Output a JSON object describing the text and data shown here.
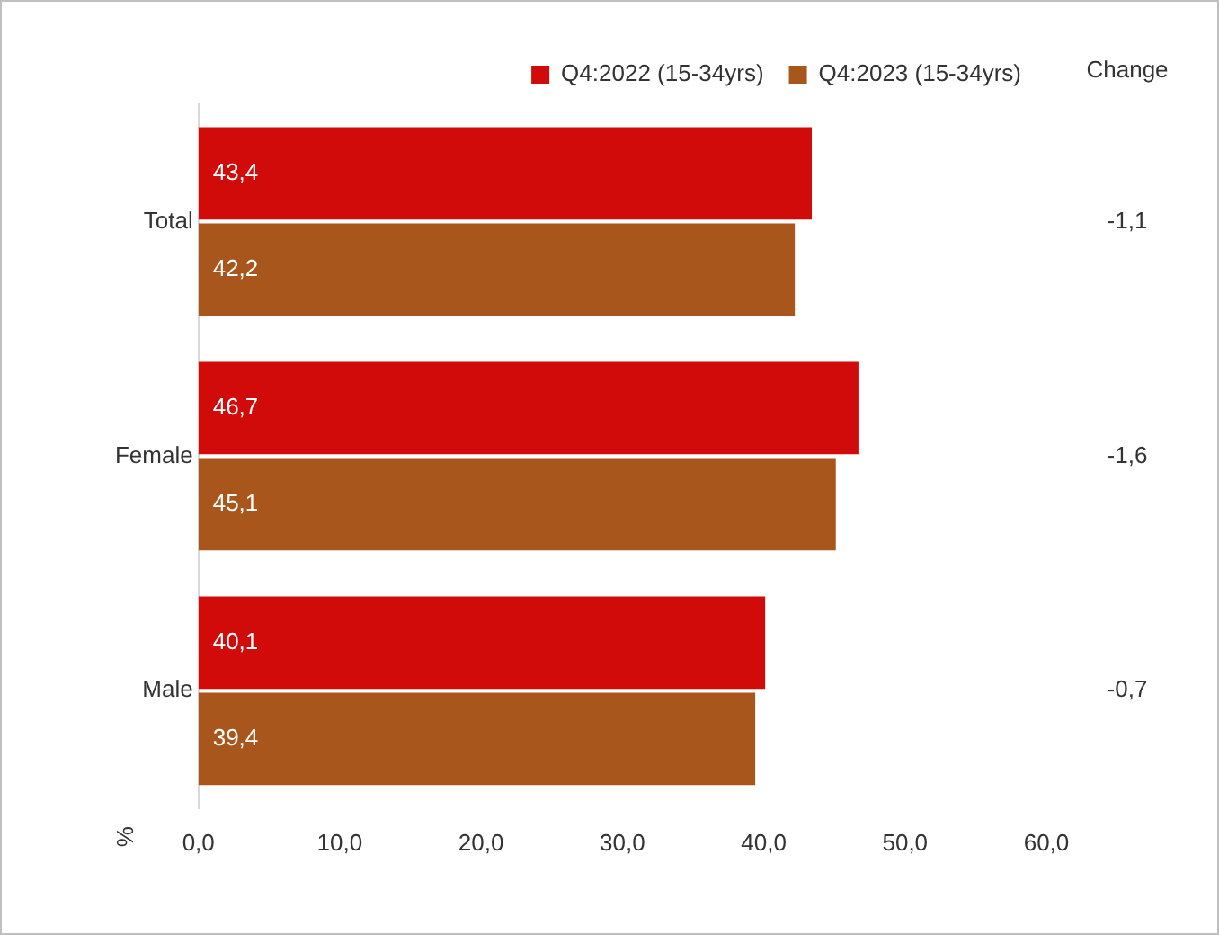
{
  "chart_data": {
    "type": "bar",
    "orientation": "horizontal",
    "categories": [
      "Total",
      "Female",
      "Male"
    ],
    "series": [
      {
        "name": "Q4:2022 (15-34yrs)",
        "color": "#d10a0a",
        "values": [
          43.4,
          46.7,
          40.1
        ],
        "value_labels": [
          "43,4",
          "46,7",
          "40,1"
        ]
      },
      {
        "name": "Q4:2023 (15-34yrs)",
        "color": "#a8561c",
        "values": [
          42.2,
          45.1,
          39.4
        ],
        "value_labels": [
          "42,2",
          "45,1",
          "39,4"
        ]
      }
    ],
    "xlim": [
      0,
      60
    ],
    "xticks": [
      {
        "value": 0,
        "label": "0,0"
      },
      {
        "value": 10,
        "label": "10,0"
      },
      {
        "value": 20,
        "label": "20,0"
      },
      {
        "value": 30,
        "label": "30,0"
      },
      {
        "value": 40,
        "label": "40,0"
      },
      {
        "value": 50,
        "label": "50,0"
      },
      {
        "value": 60,
        "label": "60,0"
      }
    ],
    "annotations": [
      "%",
      "Change",
      "-1,1",
      "-1,6",
      "-0,7"
    ],
    "legend": "top",
    "grid": false
  }
}
